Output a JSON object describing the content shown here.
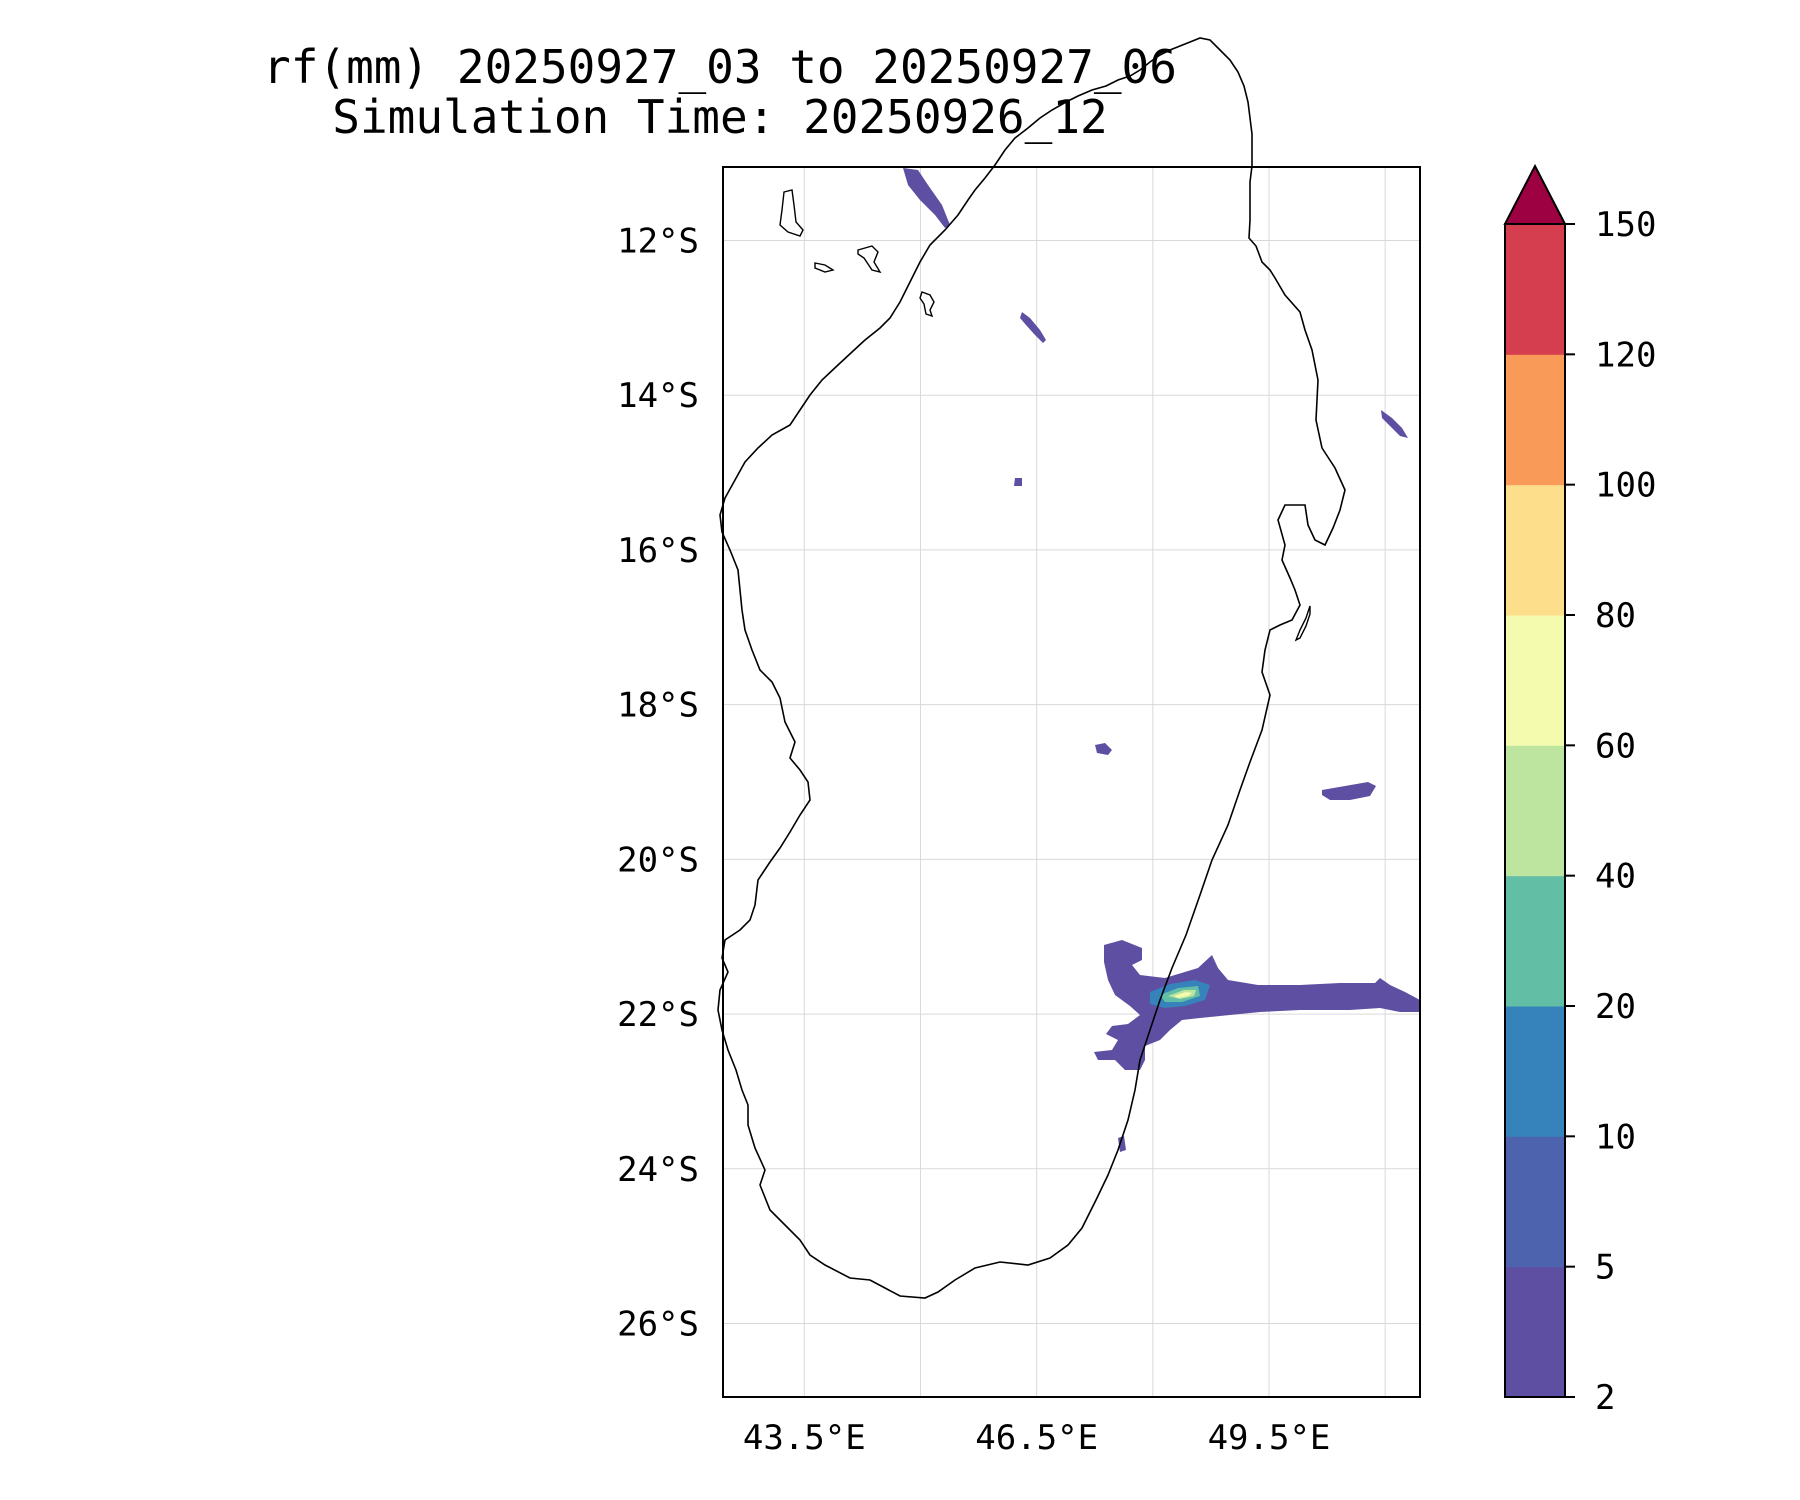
{
  "title": {
    "line1": "rf(mm) 20250927_03 to 20250927_06",
    "line2": "Simulation Time: 20250926_12"
  },
  "map": {
    "lat_ticks": [
      {
        "value": -12,
        "label": "12°S"
      },
      {
        "value": -14,
        "label": "14°S"
      },
      {
        "value": -16,
        "label": "16°S"
      },
      {
        "value": -18,
        "label": "18°S"
      },
      {
        "value": -20,
        "label": "20°S"
      },
      {
        "value": -22,
        "label": "22°S"
      },
      {
        "value": -24,
        "label": "24°S"
      },
      {
        "value": -26,
        "label": "26°S"
      }
    ],
    "lon_ticks": [
      {
        "value": 43.5,
        "label": "43.5°E"
      },
      {
        "value": 46.5,
        "label": "46.5°E"
      },
      {
        "value": 49.5,
        "label": "49.5°E"
      }
    ],
    "lon_gridlines": [
      43.5,
      45.0,
      46.5,
      48.0,
      49.5,
      51.0
    ],
    "lat_gridlines": [
      -12,
      -14,
      -16,
      -18,
      -20,
      -22,
      -24,
      -26
    ],
    "extent": {
      "lon_min": 42.45,
      "lon_max": 51.45,
      "lat_min": -26.95,
      "lat_max": -11.05
    },
    "coastline_color": "#000000",
    "grid": true
  },
  "colorbar": {
    "levels": [
      "2",
      "5",
      "10",
      "20",
      "40",
      "60",
      "80",
      "100",
      "120",
      "150"
    ],
    "colors": [
      "#5e4fa2",
      "#4e63ad",
      "#3682ba",
      "#63bea6",
      "#bde5a0",
      "#f4faae",
      "#fddf8b",
      "#f99a58",
      "#d53e4f"
    ],
    "extend_color": "#9e0142",
    "extend": "max"
  }
}
